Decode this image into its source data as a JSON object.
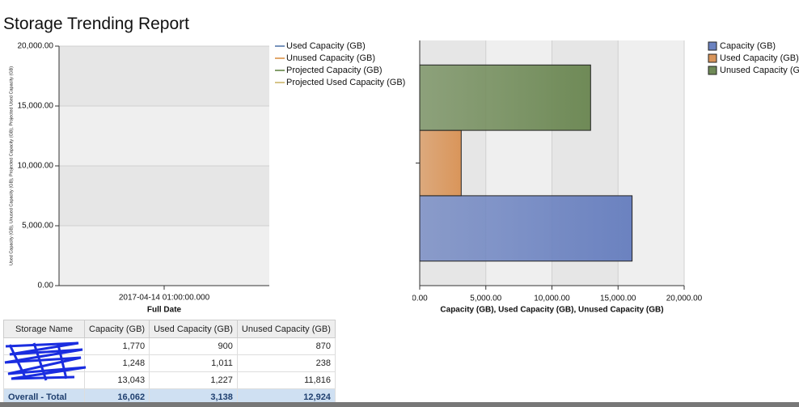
{
  "title": "Storage Trending Report",
  "chart_data": [
    {
      "type": "line",
      "categories": [
        "2017-04-14 01:00:00.000"
      ],
      "x_label": "Full Date",
      "y_label": "Used Capacity (GB), Unused Capacity (GB), Projected Capacity (GB), Projected Used Capacity (GB)",
      "series": [
        {
          "name": "Used Capacity (GB)",
          "color": "#4a6fa5",
          "values": [
            null
          ]
        },
        {
          "name": "Unused Capacity (GB)",
          "color": "#d98b3a",
          "values": [
            null
          ]
        },
        {
          "name": "Projected Capacity (GB)",
          "color": "#5a7d3a",
          "values": [
            null
          ]
        },
        {
          "name": "Projected Used Capacity (GB)",
          "color": "#c8b060",
          "values": [
            null
          ]
        }
      ],
      "ylim": [
        0,
        20000
      ],
      "yticks": [
        {
          "value": 0,
          "label": "0.00"
        },
        {
          "value": 5000,
          "label": "5,000.00"
        },
        {
          "value": 10000,
          "label": "10,000.00"
        },
        {
          "value": 15000,
          "label": "15,000.00"
        },
        {
          "value": 20000,
          "label": "20,000.00"
        }
      ],
      "grid": true,
      "legend": "right"
    },
    {
      "type": "hbar",
      "categories": [
        null
      ],
      "x_label": "Capacity (GB), Used Capacity (GB), Unused Capacity (GB)",
      "series": [
        {
          "name": "Capacity (GB)",
          "color": "#6b82c0",
          "values": [
            16062
          ]
        },
        {
          "name": "Used Capacity (GB)",
          "color": "#d9955a",
          "values": [
            3138
          ]
        },
        {
          "name": "Unused Capacity (GB)",
          "color": "#6f8a57",
          "values": [
            12924
          ]
        }
      ],
      "xlim": [
        0,
        20000
      ],
      "xticks": [
        {
          "value": 0,
          "label": "0.00"
        },
        {
          "value": 5000,
          "label": "5,000.00"
        },
        {
          "value": 10000,
          "label": "10,000.00"
        },
        {
          "value": 15000,
          "label": "15,000.00"
        },
        {
          "value": 20000,
          "label": "20,000.00"
        }
      ],
      "grid": true,
      "legend": "right"
    }
  ],
  "table": {
    "header": [
      "Storage Name",
      "Capacity (GB)",
      "Used Capacity (GB)",
      "Unused Capacity (GB)"
    ],
    "rows": [
      [
        null,
        "1,770",
        "900",
        "870"
      ],
      [
        null,
        "1,248",
        "1,011",
        "238"
      ],
      [
        null,
        "13,043",
        "1,227",
        "11,816"
      ]
    ],
    "footer": [
      "Overall - Total",
      "16,062",
      "3,138",
      "12,924"
    ]
  }
}
